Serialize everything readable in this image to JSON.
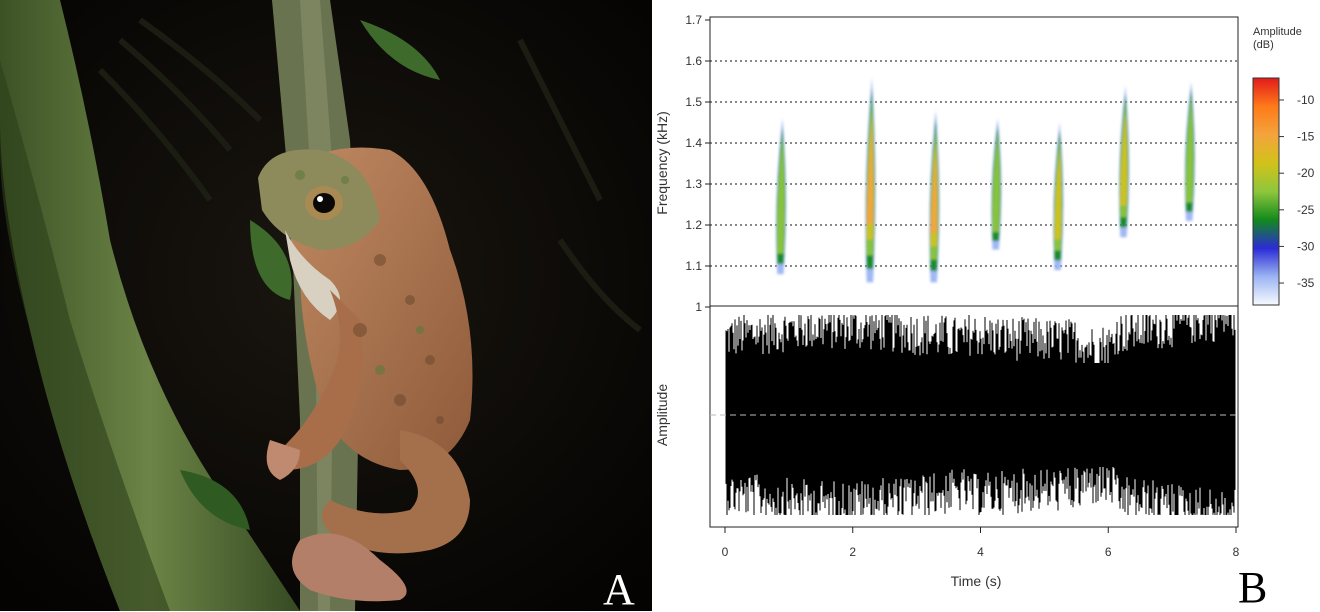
{
  "panels": {
    "photo_label": "A",
    "chart_label": "B"
  },
  "photo": {
    "subject": "tree frog on mossy branch at night",
    "colors": {
      "background": "#050403",
      "frog_body": "#b9805a",
      "frog_head": "#8d8a5c",
      "moss": "#56703a"
    }
  },
  "chart_data": [
    {
      "type": "heatmap",
      "xlabel": "",
      "ylabel": "Frequency (kHz)",
      "x_ticks": [
        0,
        2,
        4,
        6,
        8
      ],
      "y_ticks": [
        "1",
        "1.1",
        "1.2",
        "1.3",
        "1.4",
        "1.5",
        "1.6",
        "1.7"
      ],
      "ylim": [
        1.0,
        1.7
      ],
      "xlim": [
        0,
        8
      ],
      "grid": "horizontal dotted",
      "notes": [
        {
          "t": 0.88,
          "f_low": 1.08,
          "f_high": 1.46,
          "peak": -23
        },
        {
          "t": 2.28,
          "f_low": 1.06,
          "f_high": 1.56,
          "peak": -14
        },
        {
          "t": 3.28,
          "f_low": 1.06,
          "f_high": 1.48,
          "peak": -16
        },
        {
          "t": 4.25,
          "f_low": 1.14,
          "f_high": 1.46,
          "peak": -22
        },
        {
          "t": 5.22,
          "f_low": 1.09,
          "f_high": 1.45,
          "peak": -20
        },
        {
          "t": 6.25,
          "f_low": 1.17,
          "f_high": 1.54,
          "peak": -21
        },
        {
          "t": 7.28,
          "f_low": 1.21,
          "f_high": 1.55,
          "peak": -22
        }
      ],
      "legend": {
        "title_line1": "Amplitude",
        "title_line2": "(dB)",
        "ticks": [
          "-10",
          "-15",
          "-20",
          "-25",
          "-30",
          "-35"
        ],
        "range": [
          -38,
          -7
        ],
        "colors": [
          "#f7fbff",
          "#9bb4f2",
          "#2b2bd6",
          "#128a1c",
          "#8ec63c",
          "#d2c21a",
          "#f3a43c",
          "#ff7a1a",
          "#e11b1b"
        ]
      }
    },
    {
      "type": "line",
      "title": "",
      "xlabel": "Time (s)",
      "ylabel": "Amplitude",
      "x_ticks": [
        "0",
        "2",
        "4",
        "6",
        "8"
      ],
      "xlim": [
        0,
        8
      ],
      "series": [
        {
          "envelope_max": 1.0,
          "baseline": 0
        }
      ]
    }
  ]
}
